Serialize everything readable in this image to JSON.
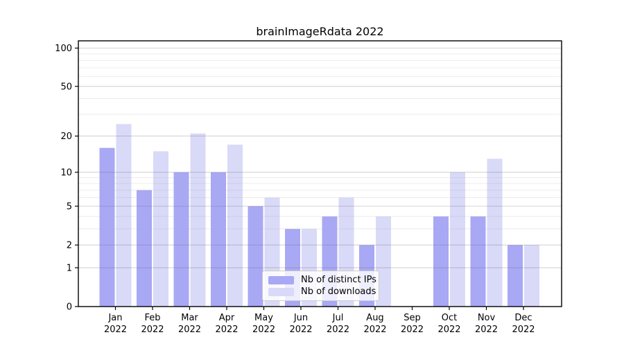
{
  "chart_data": {
    "type": "bar",
    "title": "brainImageRdata 2022",
    "categories": [
      "Jan",
      "Feb",
      "Mar",
      "Apr",
      "May",
      "Jun",
      "Jul",
      "Aug",
      "Sep",
      "Oct",
      "Nov",
      "Dec"
    ],
    "category_year_label": "2022",
    "series": [
      {
        "name": "Nb of distinct IPs",
        "color": "#a8a8f5",
        "values": [
          16,
          7,
          10,
          10,
          5,
          3,
          4,
          2,
          0,
          4,
          4,
          2
        ]
      },
      {
        "name": "Nb of downloads",
        "color": "#d9d9f8",
        "values": [
          25,
          15,
          21,
          17,
          6,
          3,
          6,
          4,
          0,
          10,
          13,
          2
        ]
      }
    ],
    "y_scale": "log1p",
    "ylim": [
      0,
      114
    ],
    "y_ticks": [
      100,
      50,
      20,
      10,
      5,
      2,
      1,
      0
    ],
    "y_minor_ticks": [
      90,
      80,
      70,
      60,
      40,
      30,
      9,
      8,
      7,
      6,
      4,
      3
    ],
    "grid": true,
    "legend_position": "lower center",
    "colors": {
      "axis": "#000000",
      "major_grid": "rgba(110,110,110,0.30)",
      "minor_grid": "rgba(180,180,180,0.25)",
      "tick_label": "#000000"
    }
  }
}
